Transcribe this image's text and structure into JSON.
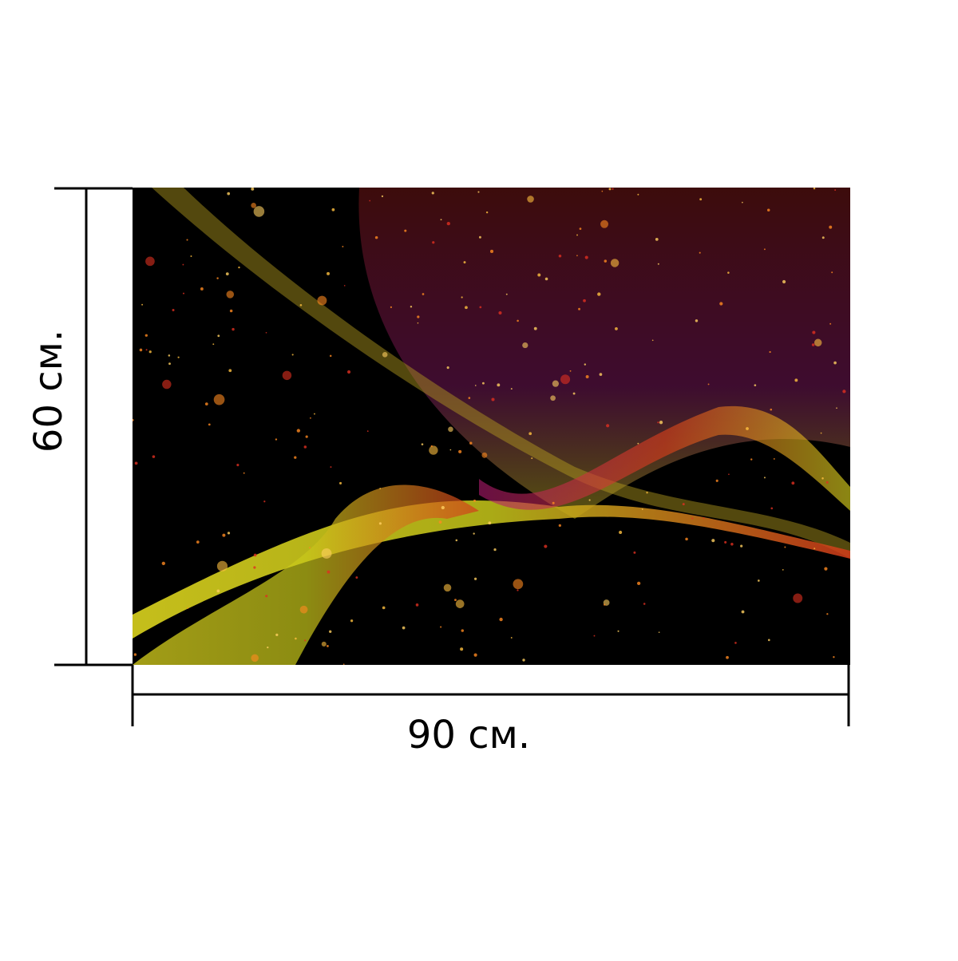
{
  "dimensions": {
    "width_label": "90 см.",
    "height_label": "60 см."
  }
}
